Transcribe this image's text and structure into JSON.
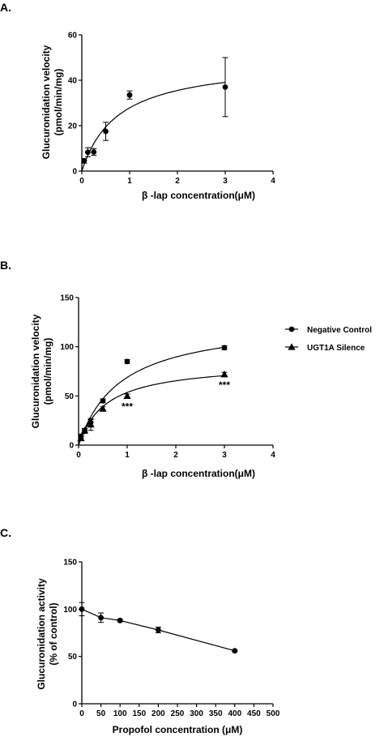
{
  "chart_data": [
    {
      "panel": "A.",
      "type": "scatter",
      "xlabel": "β -lap  concentration(μM)",
      "ylabel": "Glucuronidation velocity",
      "ylabel2": "(pmol/min/mg)",
      "xlim": [
        0,
        4
      ],
      "ylim": [
        0,
        60
      ],
      "xticks": [
        "0",
        "1",
        "2",
        "3",
        "4"
      ],
      "yticks": [
        "0",
        "20",
        "40",
        "60"
      ],
      "grid": false,
      "series": [
        {
          "marker": "circle",
          "points": [
            {
              "x": 0.05,
              "y": 4.5,
              "err": 1
            },
            {
              "x": 0.125,
              "y": 8.3,
              "err": 2
            },
            {
              "x": 0.25,
              "y": 8.4,
              "err": 1.5
            },
            {
              "x": 0.5,
              "y": 17.5,
              "err": 4
            },
            {
              "x": 1,
              "y": 33.5,
              "err": 1.8
            },
            {
              "x": 3,
              "y": 37,
              "err": 13
            }
          ],
          "fit": {
            "model": "michaelis-menten",
            "vmax": 49,
            "km": 0.76
          }
        }
      ]
    },
    {
      "panel": "B.",
      "type": "scatter",
      "xlabel": "β -lap  concentration(μM)",
      "ylabel": "Glucuronidation velocity",
      "ylabel2": "(pmol/min/mg)",
      "xlim": [
        0,
        4
      ],
      "ylim": [
        0,
        150
      ],
      "xticks": [
        "0",
        "1",
        "2",
        "3",
        "4"
      ],
      "yticks": [
        "0",
        "50",
        "100",
        "150"
      ],
      "grid": false,
      "legend_position": "right",
      "series": [
        {
          "name": "Negative Control",
          "marker": "circle",
          "points": [
            {
              "x": 0.05,
              "y": 9,
              "err": 2
            },
            {
              "x": 0.125,
              "y": 14,
              "err": 2
            },
            {
              "x": 0.25,
              "y": 23,
              "err": 3
            },
            {
              "x": 0.5,
              "y": 45,
              "err": 2
            },
            {
              "x": 1,
              "y": 85,
              "err": 2
            },
            {
              "x": 3,
              "y": 99,
              "err": 2
            }
          ],
          "fit": {
            "model": "michaelis-menten",
            "vmax": 128,
            "km": 0.86
          }
        },
        {
          "name": "UGT1A Silence",
          "marker": "triangle",
          "points": [
            {
              "x": 0.05,
              "y": 7,
              "err": 2
            },
            {
              "x": 0.125,
              "y": 15,
              "err": 2
            },
            {
              "x": 0.25,
              "y": 21,
              "err": 6
            },
            {
              "x": 0.5,
              "y": 37,
              "err": 2
            },
            {
              "x": 1,
              "y": 50,
              "err": 2
            },
            {
              "x": 3,
              "y": 72,
              "err": 2
            }
          ],
          "fit": {
            "model": "michaelis-menten",
            "vmax": 84,
            "km": 0.57
          }
        }
      ],
      "annotations": [
        {
          "text": "***",
          "x": 1,
          "y": 44
        },
        {
          "text": "***",
          "x": 3,
          "y": 66
        }
      ]
    },
    {
      "panel": "C.",
      "type": "line",
      "xlabel": "Propofol concentration (μM)",
      "ylabel": "Glucuronidation activity",
      "ylabel2": "(% of control)",
      "xlim": [
        0,
        500
      ],
      "ylim": [
        0,
        150
      ],
      "xticks": [
        "0",
        "50",
        "100",
        "150",
        "200",
        "250",
        "300",
        "350",
        "400",
        "450",
        "500"
      ],
      "yticks": [
        "0",
        "50",
        "100",
        "150"
      ],
      "grid": false,
      "series": [
        {
          "marker": "circle",
          "points": [
            {
              "x": 0,
              "y": 100,
              "err": 7
            },
            {
              "x": 50,
              "y": 91,
              "err": 5
            },
            {
              "x": 100,
              "y": 88,
              "err": 1.5
            },
            {
              "x": 200,
              "y": 78,
              "err": 3
            },
            {
              "x": 400,
              "y": 56,
              "err": 1
            }
          ]
        }
      ]
    }
  ]
}
